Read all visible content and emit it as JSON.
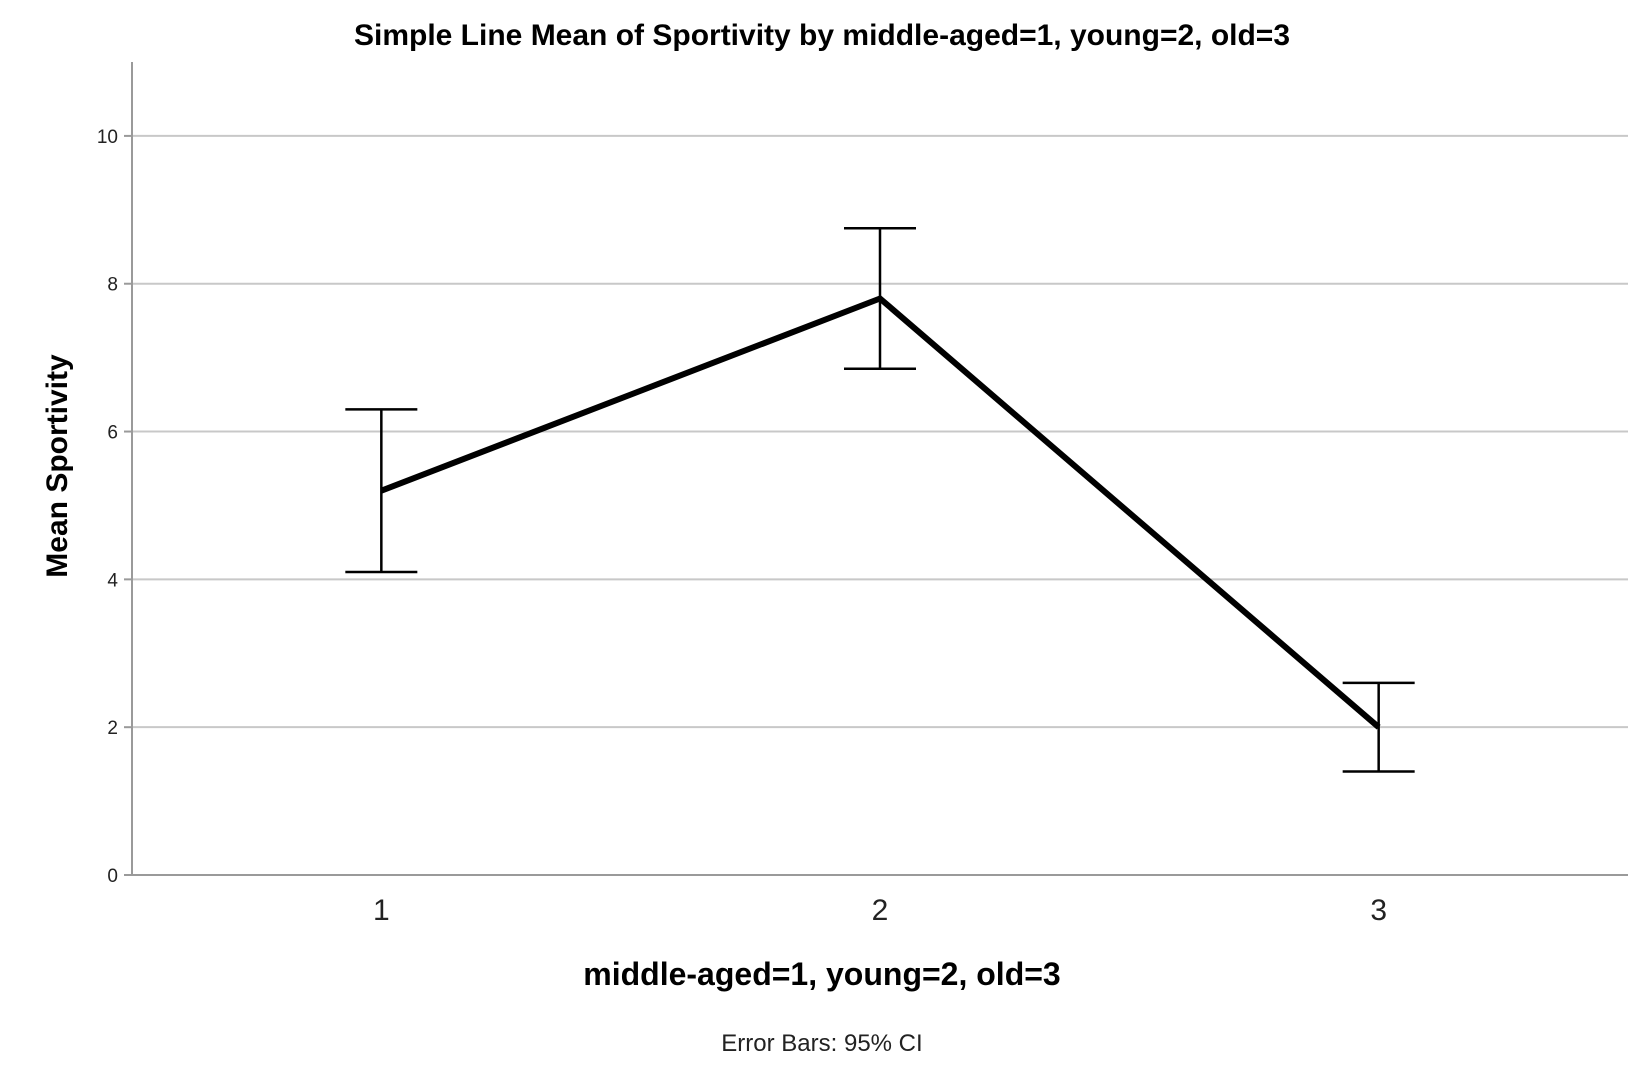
{
  "chart_data": {
    "type": "line",
    "title": "Simple Line Mean of Sportivity by middle-aged=1, young=2, old=3",
    "xlabel": "middle-aged=1, young=2, old=3",
    "ylabel": "Mean Sportivity",
    "footnote": "Error Bars: 95% CI",
    "categories": [
      "1",
      "2",
      "3"
    ],
    "series": [
      {
        "values": [
          5.2,
          7.8,
          2.0
        ],
        "ci_lower": [
          4.1,
          6.85,
          1.4
        ],
        "ci_upper": [
          6.3,
          8.75,
          2.6
        ]
      }
    ],
    "ylim": [
      0,
      11
    ],
    "yticks": [
      "0",
      "2",
      "4",
      "6",
      "8",
      "10"
    ],
    "grid": "horizontal",
    "colors": {
      "line": "#000000",
      "grid": "#c8c8c8",
      "axis": "#9a9a9a",
      "error_bar": "#000000"
    }
  }
}
